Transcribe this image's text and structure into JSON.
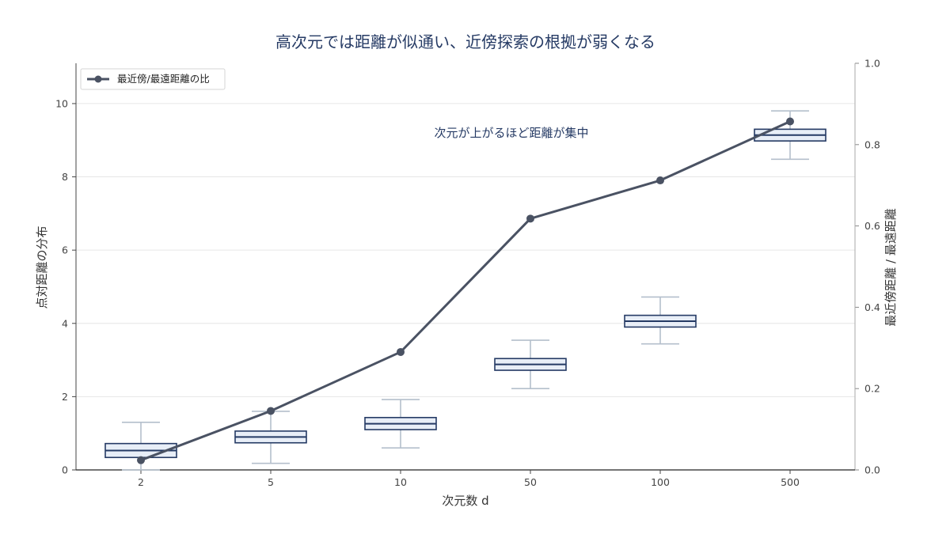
{
  "chart_data": {
    "type": "box",
    "title": "高次元では距離が似通い、近傍探索の根拠が弱くなる",
    "xlabel": "次元数 d",
    "ylabel_left": "点対距離の分布",
    "ylabel_right": "最近傍距離 / 最遠距離",
    "categories": [
      "2",
      "5",
      "10",
      "50",
      "100",
      "500"
    ],
    "ylim_left": [
      0,
      11.1
    ],
    "ylim_right": [
      0,
      1.0
    ],
    "left_ticks": [
      "0",
      "2",
      "4",
      "6",
      "8",
      "10"
    ],
    "right_ticks": [
      "0.0",
      "0.2",
      "0.4",
      "0.6",
      "0.8",
      "1.0"
    ],
    "grid": true,
    "boxes": [
      {
        "category": "2",
        "whisker_low": 0.0,
        "q1": 0.34,
        "median": 0.53,
        "q3": 0.72,
        "whisker_high": 1.3
      },
      {
        "category": "5",
        "whisker_low": 0.18,
        "q1": 0.74,
        "median": 0.9,
        "q3": 1.06,
        "whisker_high": 1.6
      },
      {
        "category": "10",
        "whisker_low": 0.6,
        "q1": 1.1,
        "median": 1.26,
        "q3": 1.43,
        "whisker_high": 1.92
      },
      {
        "category": "50",
        "whisker_low": 2.22,
        "q1": 2.72,
        "median": 2.88,
        "q3": 3.04,
        "whisker_high": 3.54
      },
      {
        "category": "100",
        "whisker_low": 3.44,
        "q1": 3.9,
        "median": 4.06,
        "q3": 4.22,
        "whisker_high": 4.72
      },
      {
        "category": "500",
        "whisker_low": 8.48,
        "q1": 8.98,
        "median": 9.14,
        "q3": 9.3,
        "whisker_high": 9.8
      }
    ],
    "series": [
      {
        "name": "最近傍/最遠距離の比",
        "axis": "right",
        "values": [
          0.024,
          0.145,
          0.29,
          0.618,
          0.712,
          0.857
        ]
      }
    ],
    "legend_position": "top-left",
    "annotation": "次元が上がるほど距離が集中",
    "colors": {
      "box_edge": "#253a64",
      "box_fill": "#e8eef7",
      "whisker": "#b4bfcc",
      "line": "#4a5263",
      "grid": "#e6e6e6"
    }
  }
}
